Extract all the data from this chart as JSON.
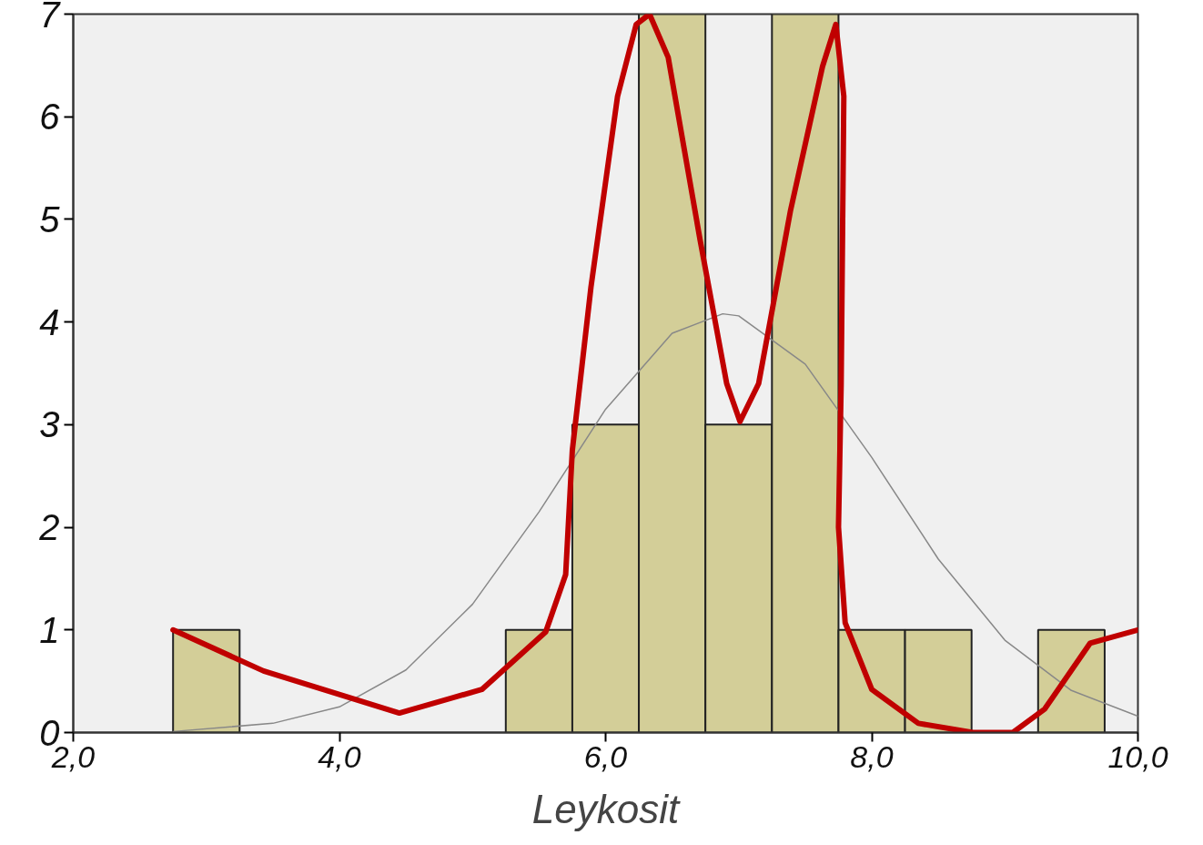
{
  "chart_data": {
    "type": "histogram",
    "xlabel": "Leykosit",
    "bins": [
      2.75,
      3.25,
      3.75,
      4.25,
      4.75,
      5.25,
      5.75,
      6.25,
      6.75,
      7.25,
      7.75,
      8.25,
      8.75,
      9.25,
      9.75
    ],
    "values": [
      1,
      0,
      0,
      0,
      0,
      1,
      3,
      7,
      3,
      7,
      1,
      1,
      0,
      1
    ],
    "color": "#d3ce98",
    "series": [
      {
        "type": "line",
        "color": "#888888",
        "x": [
          2.75,
          3.5,
          4.0,
          4.5,
          5.0,
          5.5,
          6.0,
          6.5,
          6.88,
          7.0,
          7.5,
          8.0,
          8.5,
          9.0,
          9.5,
          10.0
        ],
        "values": [
          0.01,
          0.09,
          0.25,
          0.61,
          1.25,
          2.15,
          3.15,
          3.89,
          4.08,
          4.06,
          3.59,
          2.68,
          1.69,
          0.9,
          0.41,
          0.16
        ]
      },
      {
        "type": "line",
        "color": "#c00000",
        "x": [
          2.75,
          3.43,
          4.45,
          5.07,
          5.55,
          5.7,
          5.75,
          5.89,
          6.09,
          6.23,
          6.33,
          6.47,
          6.71,
          6.91,
          7.01,
          7.15,
          7.39,
          7.63,
          7.73,
          7.79,
          7.77,
          7.75,
          7.8,
          8.0,
          8.35,
          8.76,
          9.06,
          9.3,
          9.64,
          10.0
        ],
        "values": [
          1.0,
          0.6,
          0.19,
          0.42,
          0.98,
          1.54,
          2.75,
          4.34,
          6.2,
          6.9,
          7.0,
          6.58,
          4.8,
          3.4,
          3.03,
          3.4,
          5.09,
          6.49,
          6.9,
          6.2,
          3.4,
          2.0,
          1.07,
          0.42,
          0.09,
          0.0,
          0.0,
          0.23,
          0.87,
          1.0
        ]
      }
    ],
    "xlim": [
      2.0,
      10.0
    ],
    "xticks": [
      {
        "value": 2,
        "label": "2,0"
      },
      {
        "value": 4,
        "label": "4,0"
      },
      {
        "value": 6,
        "label": "6,0"
      },
      {
        "value": 8,
        "label": "8,0"
      },
      {
        "value": 10,
        "label": "10,0"
      }
    ],
    "ylim": [
      0,
      7
    ],
    "yticks": [
      0,
      1,
      2,
      3,
      4,
      5,
      6,
      7
    ],
    "grid": false
  }
}
